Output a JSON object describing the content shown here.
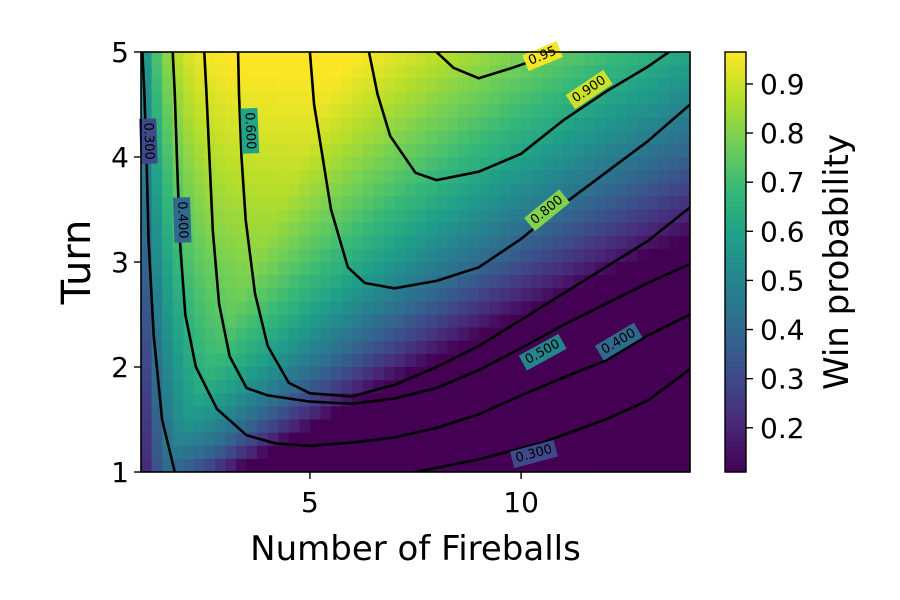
{
  "chart_data": {
    "type": "heatmap",
    "title": "",
    "xlabel": "Number of Fireballs",
    "ylabel": "Turn",
    "xlim": [
      1,
      14
    ],
    "ylim": [
      1,
      5
    ],
    "xticks": [
      5,
      10
    ],
    "yticks": [
      1,
      2,
      3,
      4,
      5
    ],
    "colorbar": {
      "label": "Win probability",
      "range": [
        0.11,
        0.965
      ],
      "ticks": [
        0.2,
        0.3,
        0.4,
        0.5,
        0.6,
        0.7,
        0.8,
        0.9
      ],
      "colormap": "viridis"
    },
    "contours": [
      {
        "level": 0.3,
        "label": "0.300",
        "paths": [
          [
            [
              1.03,
              5
            ],
            [
              1.08,
              4.6
            ],
            [
              1.13,
              4.0
            ],
            [
              1.18,
              3.2
            ],
            [
              1.3,
              2.3
            ],
            [
              1.5,
              1.5
            ],
            [
              1.8,
              1.0
            ]
          ],
          [
            [
              7.5,
              1.0
            ],
            [
              9.0,
              1.12
            ],
            [
              10.5,
              1.28
            ],
            [
              12.0,
              1.5
            ],
            [
              13.0,
              1.68
            ],
            [
              14.0,
              1.98
            ]
          ]
        ],
        "label_positions": [
          [
            1.2,
            4.15
          ],
          [
            10.3,
            1.18
          ]
        ]
      },
      {
        "level": 0.4,
        "label": "0.400",
        "paths": [
          [
            [
              1.75,
              5
            ],
            [
              1.8,
              4.6
            ],
            [
              1.85,
              4.0
            ],
            [
              1.92,
              3.2
            ],
            [
              2.05,
              2.5
            ],
            [
              2.3,
              2.0
            ],
            [
              2.8,
              1.6
            ],
            [
              3.5,
              1.35
            ],
            [
              4.2,
              1.27
            ],
            [
              5.0,
              1.25
            ],
            [
              6.0,
              1.28
            ],
            [
              7.0,
              1.33
            ],
            [
              8.0,
              1.42
            ],
            [
              9.0,
              1.55
            ],
            [
              10.0,
              1.73
            ],
            [
              11.0,
              1.9
            ],
            [
              12.0,
              2.06
            ],
            [
              13.0,
              2.3
            ],
            [
              14.0,
              2.5
            ]
          ]
        ],
        "label_positions": [
          [
            2.0,
            3.4
          ],
          [
            12.3,
            2.25
          ]
        ]
      },
      {
        "level": 0.5,
        "label": "0.500",
        "paths": [
          [
            [
              2.5,
              5
            ],
            [
              2.55,
              4.6
            ],
            [
              2.62,
              4.0
            ],
            [
              2.7,
              3.3
            ],
            [
              2.85,
              2.6
            ],
            [
              3.1,
              2.1
            ],
            [
              3.5,
              1.8
            ],
            [
              4.0,
              1.73
            ],
            [
              5.0,
              1.67
            ],
            [
              6.0,
              1.65
            ],
            [
              7.0,
              1.7
            ],
            [
              8.0,
              1.8
            ],
            [
              9.0,
              1.97
            ],
            [
              10.0,
              2.18
            ],
            [
              11.0,
              2.4
            ],
            [
              12.0,
              2.6
            ],
            [
              13.0,
              2.8
            ],
            [
              14.0,
              2.98
            ]
          ]
        ],
        "label_positions": [
          [
            10.5,
            2.15
          ]
        ]
      },
      {
        "level": 0.6,
        "label": "0.600",
        "paths": [
          [
            [
              3.3,
              5
            ],
            [
              3.32,
              4.6
            ],
            [
              3.38,
              4.0
            ],
            [
              3.48,
              3.4
            ],
            [
              3.7,
              2.7
            ],
            [
              4.0,
              2.2
            ],
            [
              4.5,
              1.85
            ],
            [
              5.0,
              1.75
            ],
            [
              6.0,
              1.72
            ],
            [
              7.0,
              1.83
            ],
            [
              8.0,
              2.0
            ],
            [
              9.0,
              2.2
            ],
            [
              10.0,
              2.45
            ],
            [
              11.0,
              2.7
            ],
            [
              12.0,
              2.95
            ],
            [
              13.0,
              3.2
            ],
            [
              14.0,
              3.52
            ]
          ]
        ],
        "label_positions": [
          [
            3.6,
            4.25
          ]
        ]
      },
      {
        "level": 0.8,
        "label": "0.800",
        "paths": [
          [
            [
              5.0,
              5
            ],
            [
              5.1,
              4.5
            ],
            [
              5.3,
              4.0
            ],
            [
              5.5,
              3.5
            ],
            [
              5.9,
              2.95
            ],
            [
              6.3,
              2.8
            ],
            [
              7.0,
              2.75
            ],
            [
              8.0,
              2.82
            ],
            [
              9.0,
              2.95
            ],
            [
              10.0,
              3.22
            ],
            [
              11.0,
              3.55
            ],
            [
              12.0,
              3.85
            ],
            [
              13.0,
              4.15
            ],
            [
              14.0,
              4.5
            ]
          ]
        ],
        "label_positions": [
          [
            10.6,
            3.5
          ]
        ]
      },
      {
        "level": 0.9,
        "label": "0.900",
        "paths": [
          [
            [
              6.4,
              5
            ],
            [
              6.6,
              4.6
            ],
            [
              6.9,
              4.2
            ],
            [
              7.5,
              3.85
            ],
            [
              8.0,
              3.78
            ],
            [
              9.0,
              3.86
            ],
            [
              10.0,
              4.03
            ],
            [
              11.0,
              4.35
            ],
            [
              12.0,
              4.62
            ],
            [
              13.0,
              4.86
            ],
            [
              13.5,
              5.0
            ]
          ]
        ],
        "label_positions": [
          [
            11.6,
            4.65
          ]
        ]
      },
      {
        "level": 0.95,
        "label": "0.95",
        "paths": [
          [
            [
              8.0,
              5
            ],
            [
              8.4,
              4.85
            ],
            [
              9.0,
              4.75
            ],
            [
              9.8,
              4.85
            ],
            [
              10.5,
              4.95
            ],
            [
              10.8,
              5.0
            ]
          ]
        ],
        "label_positions": [
          [
            10.5,
            4.97
          ]
        ]
      }
    ]
  }
}
